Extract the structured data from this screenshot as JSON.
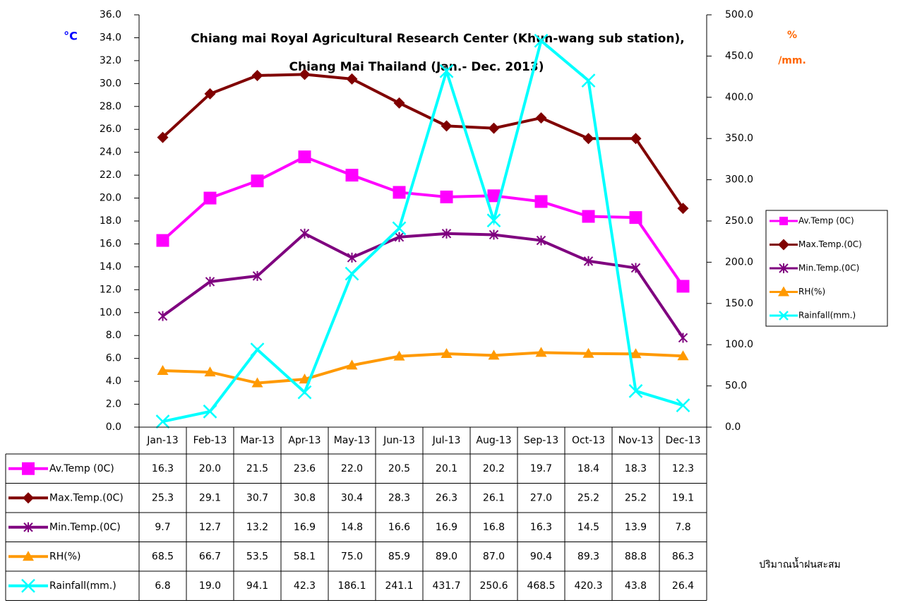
{
  "chart_data": {
    "type": "line",
    "title_lines": [
      "Chiang mai Royal Agricultural Research Center (Khun-wang sub station),",
      "Chiang Mai Thailand (Jan.- Dec. 2013)"
    ],
    "y_label": "°C",
    "y2_label_lines": [
      "%",
      "/mm."
    ],
    "annotation": "ปริมาณน้ำฝนสะสม",
    "categories": [
      "Jan-13",
      "Feb-13",
      "Mar-13",
      "Apr-13",
      "May-13",
      "Jun-13",
      "Jul-13",
      "Aug-13",
      "Sep-13",
      "Oct-13",
      "Nov-13",
      "Dec-13"
    ],
    "ylim": [
      0,
      36
    ],
    "yticks": [
      {
        "value": 0,
        "label": "0.0"
      },
      {
        "value": 2,
        "label": "2.0"
      },
      {
        "value": 4,
        "label": "4.0"
      },
      {
        "value": 6,
        "label": "6.0"
      },
      {
        "value": 8,
        "label": "8.0"
      },
      {
        "value": 10,
        "label": "10.0"
      },
      {
        "value": 12,
        "label": "12.0"
      },
      {
        "value": 14,
        "label": "14.0"
      },
      {
        "value": 16,
        "label": "16.0"
      },
      {
        "value": 18,
        "label": "18.0"
      },
      {
        "value": 20,
        "label": "20.0"
      },
      {
        "value": 22,
        "label": "22.0"
      },
      {
        "value": 24,
        "label": "24.0"
      },
      {
        "value": 26,
        "label": "26.0"
      },
      {
        "value": 28,
        "label": "28.0"
      },
      {
        "value": 30,
        "label": "30.0"
      },
      {
        "value": 32,
        "label": "32.0"
      },
      {
        "value": 34,
        "label": "34.0"
      },
      {
        "value": 36,
        "label": "36.0"
      }
    ],
    "y2lim": [
      0,
      500
    ],
    "y2ticks": [
      {
        "value": 0,
        "label": "0.0"
      },
      {
        "value": 50,
        "label": "50.0"
      },
      {
        "value": 100,
        "label": "100.0"
      },
      {
        "value": 150,
        "label": "150.0"
      },
      {
        "value": 200,
        "label": "200.0"
      },
      {
        "value": 250,
        "label": "250.0"
      },
      {
        "value": 300,
        "label": "300.0"
      },
      {
        "value": 350,
        "label": "350.0"
      },
      {
        "value": 400,
        "label": "400.0"
      },
      {
        "value": 450,
        "label": "450.0"
      },
      {
        "value": 500,
        "label": "500.0"
      }
    ],
    "grid": false,
    "legend": "right",
    "series": [
      {
        "name": "Av.Temp (0C)",
        "color": "#ff00ff",
        "marker": "square",
        "values": [
          16.3,
          20.0,
          21.5,
          23.6,
          22.0,
          20.5,
          20.1,
          20.2,
          19.7,
          18.4,
          18.3,
          12.3
        ],
        "value_labels": [
          "16.3",
          "20.0",
          "21.5",
          "23.6",
          "22.0",
          "20.5",
          "20.1",
          "20.2",
          "19.7",
          "18.4",
          "18.3",
          "12.3"
        ]
      },
      {
        "name": "Max.Temp.(0C)",
        "color": "#800000",
        "marker": "diamond",
        "values": [
          25.3,
          29.1,
          30.7,
          30.8,
          30.4,
          28.3,
          26.3,
          26.1,
          27.0,
          25.2,
          25.2,
          19.1
        ],
        "value_labels": [
          "25.3",
          "29.1",
          "30.7",
          "30.8",
          "30.4",
          "28.3",
          "26.3",
          "26.1",
          "27.0",
          "25.2",
          "25.2",
          "19.1"
        ]
      },
      {
        "name": "Min.Temp.(0C)",
        "color": "#7f007f",
        "marker": "star",
        "values": [
          9.7,
          12.7,
          13.2,
          16.9,
          14.8,
          16.6,
          16.9,
          16.8,
          16.3,
          14.5,
          13.9,
          7.8
        ],
        "value_labels": [
          "9.7",
          "12.7",
          "13.2",
          "16.9",
          "14.8",
          "16.6",
          "16.9",
          "16.8",
          "16.3",
          "14.5",
          "13.9",
          "7.8"
        ]
      },
      {
        "name": "RH(%)",
        "color": "#ff9900",
        "marker": "triangle",
        "axis": "y2",
        "values": [
          68.5,
          66.7,
          53.5,
          58.1,
          75.0,
          85.9,
          89.0,
          87.0,
          90.4,
          89.3,
          88.8,
          86.3
        ],
        "value_labels": [
          "68.5",
          "66.7",
          "53.5",
          "58.1",
          "75.0",
          "85.9",
          "89.0",
          "87.0",
          "90.4",
          "89.3",
          "88.8",
          "86.3"
        ]
      },
      {
        "name": "Rainfall(mm.)",
        "color": "#00ffff",
        "marker": "x",
        "axis": "y2",
        "values": [
          6.8,
          19.0,
          94.1,
          42.3,
          186.1,
          241.1,
          431.7,
          250.6,
          468.5,
          420.3,
          43.8,
          26.4
        ],
        "value_labels": [
          "6.8",
          "19.0",
          "94.1",
          "42.3",
          "186.1",
          "241.1",
          "431.7",
          "250.6",
          "468.5",
          "420.3",
          "43.8",
          "26.4"
        ]
      }
    ]
  }
}
